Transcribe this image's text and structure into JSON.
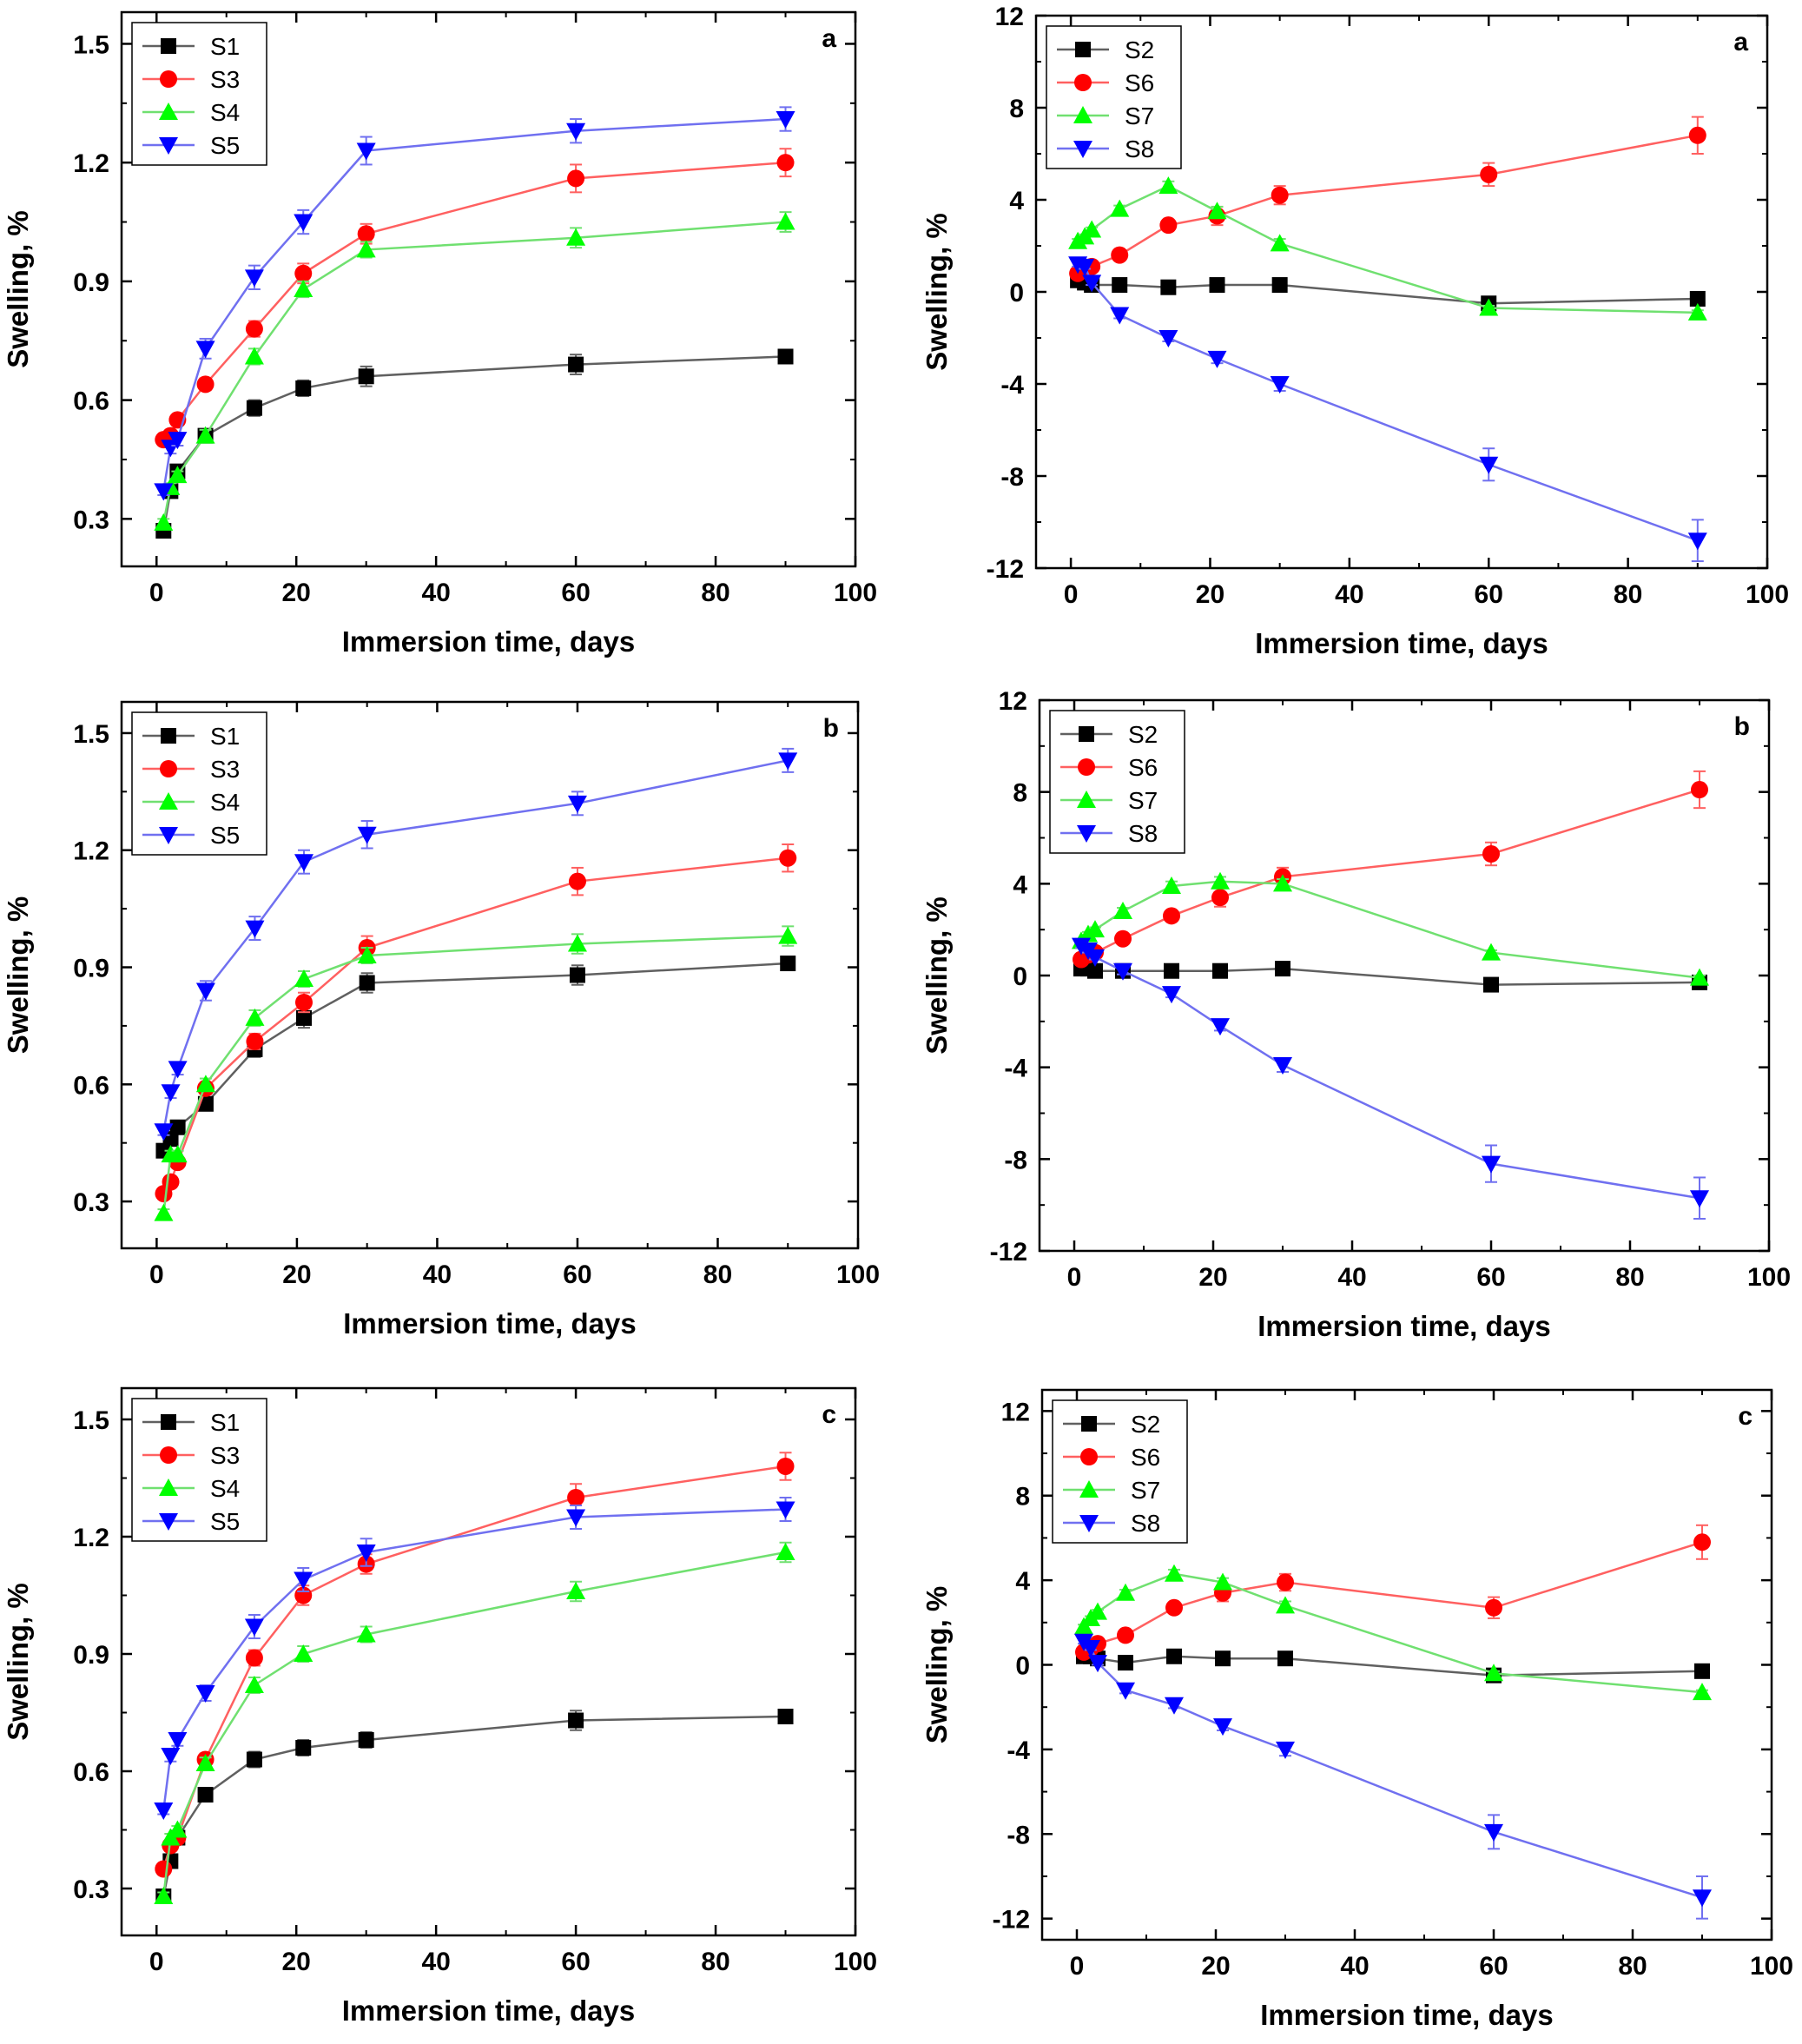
{
  "chart_data": [
    {
      "type": "line",
      "panel_label": "a",
      "xlabel": "Immersion time, days",
      "ylabel": "Swelling, %",
      "xlim": [
        -5,
        100
      ],
      "ylim": [
        0.18,
        1.58
      ],
      "xticks": [
        0,
        20,
        40,
        60,
        80,
        100
      ],
      "yticks": [
        0.3,
        0.6,
        0.9,
        1.2,
        1.5
      ],
      "ytick_labels": [
        "0.3",
        "0.6",
        "0.9",
        "1.2",
        "1.5"
      ],
      "legend_position": "top-left",
      "x": [
        1,
        2,
        3,
        7,
        14,
        21,
        30,
        60,
        90
      ],
      "series": [
        {
          "name": "S1",
          "color": "#000000",
          "line": "#606060",
          "marker": "square",
          "values": [
            0.27,
            0.37,
            0.42,
            0.51,
            0.58,
            0.63,
            0.66,
            0.69,
            0.71
          ],
          "errors": [
            0.01,
            0.01,
            0.01,
            0.01,
            0.02,
            0.02,
            0.025,
            0.025,
            0.01
          ]
        },
        {
          "name": "S3",
          "color": "#ff0000",
          "line": "#ff6060",
          "marker": "circle",
          "values": [
            0.5,
            0.51,
            0.55,
            0.64,
            0.78,
            0.92,
            1.02,
            1.16,
            1.2
          ],
          "errors": [
            0.01,
            0.01,
            0.01,
            0.015,
            0.02,
            0.025,
            0.025,
            0.035,
            0.035
          ]
        },
        {
          "name": "S4",
          "color": "#00ff00",
          "line": "#70e070",
          "marker": "triangle-up",
          "values": [
            0.29,
            0.38,
            0.41,
            0.51,
            0.71,
            0.88,
            0.98,
            1.01,
            1.05
          ],
          "errors": [
            0.01,
            0.01,
            0.01,
            0.015,
            0.02,
            0.02,
            0.02,
            0.025,
            0.025
          ]
        },
        {
          "name": "S5",
          "color": "#0000ff",
          "line": "#7070f0",
          "marker": "triangle-down",
          "values": [
            0.37,
            0.48,
            0.5,
            0.73,
            0.91,
            1.05,
            1.23,
            1.28,
            1.31
          ],
          "errors": [
            0.01,
            0.015,
            0.015,
            0.025,
            0.03,
            0.03,
            0.035,
            0.03,
            0.03
          ]
        }
      ]
    },
    {
      "type": "line",
      "panel_label": "a",
      "xlabel": "Immersion time, days",
      "ylabel": "Swelling, %",
      "xlim": [
        -5,
        100
      ],
      "ylim": [
        -12,
        12
      ],
      "xticks": [
        0,
        20,
        40,
        60,
        80,
        100
      ],
      "yticks": [
        -12,
        -8,
        -4,
        0,
        4,
        8,
        12
      ],
      "ytick_labels": [
        "-12",
        "-8",
        "-4",
        "0",
        "4",
        "8",
        "12"
      ],
      "legend_position": "top-left",
      "x": [
        1,
        2,
        3,
        7,
        14,
        21,
        30,
        60,
        90
      ],
      "series": [
        {
          "name": "S2",
          "color": "#000000",
          "line": "#606060",
          "marker": "square",
          "values": [
            0.5,
            0.4,
            0.3,
            0.3,
            0.2,
            0.3,
            0.3,
            -0.5,
            -0.3
          ],
          "errors": [
            0.1,
            0.1,
            0.1,
            0.1,
            0.1,
            0.1,
            0.1,
            0.15,
            0.1
          ]
        },
        {
          "name": "S6",
          "color": "#ff0000",
          "line": "#ff6060",
          "marker": "circle",
          "values": [
            0.8,
            1.0,
            1.1,
            1.6,
            2.9,
            3.3,
            4.2,
            5.1,
            6.8
          ],
          "errors": [
            0.1,
            0.1,
            0.1,
            0.15,
            0.2,
            0.4,
            0.4,
            0.5,
            0.8
          ]
        },
        {
          "name": "S7",
          "color": "#00ff00",
          "line": "#70e070",
          "marker": "triangle-up",
          "values": [
            2.2,
            2.4,
            2.7,
            3.6,
            4.6,
            3.5,
            2.1,
            -0.7,
            -0.9
          ],
          "errors": [
            0.1,
            0.1,
            0.1,
            0.15,
            0.2,
            0.2,
            0.2,
            0.1,
            0.1
          ]
        },
        {
          "name": "S8",
          "color": "#0000ff",
          "line": "#7070f0",
          "marker": "triangle-down",
          "values": [
            1.2,
            1.1,
            0.4,
            -1.0,
            -2.0,
            -2.9,
            -4.0,
            -7.5,
            -10.8
          ],
          "errors": [
            0.1,
            0.1,
            0.1,
            0.15,
            0.15,
            0.2,
            0.3,
            0.7,
            0.9
          ]
        }
      ]
    },
    {
      "type": "line",
      "panel_label": "b",
      "xlabel": "Immersion time, days",
      "ylabel": "Swelling, %",
      "xlim": [
        -5,
        100
      ],
      "ylim": [
        0.18,
        1.58
      ],
      "xticks": [
        0,
        20,
        40,
        60,
        80,
        100
      ],
      "yticks": [
        0.3,
        0.6,
        0.9,
        1.2,
        1.5
      ],
      "ytick_labels": [
        "0.3",
        "0.6",
        "0.9",
        "1.2",
        "1.5"
      ],
      "legend_position": "top-left",
      "x": [
        1,
        2,
        3,
        7,
        14,
        21,
        30,
        60,
        90
      ],
      "series": [
        {
          "name": "S1",
          "color": "#000000",
          "line": "#606060",
          "marker": "square",
          "values": [
            0.43,
            0.46,
            0.49,
            0.55,
            0.69,
            0.77,
            0.86,
            0.88,
            0.91
          ],
          "errors": [
            0.01,
            0.01,
            0.01,
            0.015,
            0.02,
            0.025,
            0.025,
            0.025,
            0.01
          ]
        },
        {
          "name": "S3",
          "color": "#ff0000",
          "line": "#ff6060",
          "marker": "circle",
          "values": [
            0.32,
            0.35,
            0.4,
            0.59,
            0.71,
            0.81,
            0.95,
            1.12,
            1.18
          ],
          "errors": [
            0.01,
            0.01,
            0.01,
            0.015,
            0.02,
            0.025,
            0.03,
            0.035,
            0.035
          ]
        },
        {
          "name": "S4",
          "color": "#00ff00",
          "line": "#70e070",
          "marker": "triangle-up",
          "values": [
            0.27,
            0.42,
            0.42,
            0.6,
            0.77,
            0.87,
            0.93,
            0.96,
            0.98
          ],
          "errors": [
            0.01,
            0.01,
            0.01,
            0.015,
            0.02,
            0.02,
            0.02,
            0.025,
            0.025
          ]
        },
        {
          "name": "S5",
          "color": "#0000ff",
          "line": "#7070f0",
          "marker": "triangle-down",
          "values": [
            0.48,
            0.58,
            0.64,
            0.84,
            1.0,
            1.17,
            1.24,
            1.32,
            1.43
          ],
          "errors": [
            0.01,
            0.015,
            0.015,
            0.025,
            0.03,
            0.03,
            0.035,
            0.03,
            0.03
          ]
        }
      ]
    },
    {
      "type": "line",
      "panel_label": "b",
      "xlabel": "Immersion time, days",
      "ylabel": "Swelling, %",
      "xlim": [
        -5,
        100
      ],
      "ylim": [
        -12,
        12
      ],
      "xticks": [
        0,
        20,
        40,
        60,
        80,
        100
      ],
      "yticks": [
        -12,
        -8,
        -4,
        0,
        4,
        8,
        12
      ],
      "ytick_labels": [
        "-12",
        "-8",
        "-4",
        "0",
        "4",
        "8",
        "12"
      ],
      "legend_position": "top-left",
      "x": [
        1,
        2,
        3,
        7,
        14,
        21,
        30,
        60,
        90
      ],
      "series": [
        {
          "name": "S2",
          "color": "#000000",
          "line": "#606060",
          "marker": "square",
          "values": [
            0.3,
            0.3,
            0.2,
            0.2,
            0.2,
            0.2,
            0.3,
            -0.4,
            -0.3
          ],
          "errors": [
            0.1,
            0.1,
            0.1,
            0.1,
            0.1,
            0.1,
            0.1,
            0.1,
            0.1
          ]
        },
        {
          "name": "S6",
          "color": "#ff0000",
          "line": "#ff6060",
          "marker": "circle",
          "values": [
            0.7,
            0.9,
            1.0,
            1.6,
            2.6,
            3.4,
            4.3,
            5.3,
            8.1
          ],
          "errors": [
            0.1,
            0.1,
            0.1,
            0.15,
            0.2,
            0.4,
            0.4,
            0.5,
            0.8
          ]
        },
        {
          "name": "S7",
          "color": "#00ff00",
          "line": "#70e070",
          "marker": "triangle-up",
          "values": [
            1.5,
            1.8,
            2.0,
            2.8,
            3.9,
            4.1,
            4.0,
            1.0,
            -0.1
          ],
          "errors": [
            0.1,
            0.1,
            0.1,
            0.15,
            0.2,
            0.2,
            0.2,
            0.1,
            0.1
          ]
        },
        {
          "name": "S8",
          "color": "#0000ff",
          "line": "#7070f0",
          "marker": "triangle-down",
          "values": [
            1.3,
            1.1,
            0.8,
            0.2,
            -0.8,
            -2.2,
            -3.9,
            -8.2,
            -9.7
          ],
          "errors": [
            0.1,
            0.1,
            0.1,
            0.15,
            0.15,
            0.2,
            0.3,
            0.8,
            0.9
          ]
        }
      ]
    },
    {
      "type": "line",
      "panel_label": "c",
      "xlabel": "Immersion time, days",
      "ylabel": "Swelling, %",
      "xlim": [
        -5,
        100
      ],
      "ylim": [
        0.18,
        1.58
      ],
      "xticks": [
        0,
        20,
        40,
        60,
        80,
        100
      ],
      "yticks": [
        0.3,
        0.6,
        0.9,
        1.2,
        1.5
      ],
      "ytick_labels": [
        "0.3",
        "0.6",
        "0.9",
        "1.2",
        "1.5"
      ],
      "legend_position": "top-left",
      "x": [
        1,
        2,
        3,
        7,
        14,
        21,
        30,
        60,
        90
      ],
      "series": [
        {
          "name": "S1",
          "color": "#000000",
          "line": "#606060",
          "marker": "square",
          "values": [
            0.28,
            0.37,
            0.43,
            0.54,
            0.63,
            0.66,
            0.68,
            0.73,
            0.74
          ],
          "errors": [
            0.01,
            0.01,
            0.01,
            0.01,
            0.02,
            0.02,
            0.02,
            0.025,
            0.01
          ]
        },
        {
          "name": "S3",
          "color": "#ff0000",
          "line": "#ff6060",
          "marker": "circle",
          "values": [
            0.35,
            0.41,
            0.43,
            0.63,
            0.89,
            1.05,
            1.13,
            1.3,
            1.38
          ],
          "errors": [
            0.01,
            0.01,
            0.01,
            0.015,
            0.02,
            0.025,
            0.025,
            0.035,
            0.035
          ]
        },
        {
          "name": "S4",
          "color": "#00ff00",
          "line": "#70e070",
          "marker": "triangle-up",
          "values": [
            0.28,
            0.43,
            0.45,
            0.62,
            0.82,
            0.9,
            0.95,
            1.06,
            1.16
          ],
          "errors": [
            0.01,
            0.01,
            0.01,
            0.015,
            0.02,
            0.02,
            0.02,
            0.025,
            0.025
          ]
        },
        {
          "name": "S5",
          "color": "#0000ff",
          "line": "#7070f0",
          "marker": "triangle-down",
          "values": [
            0.5,
            0.64,
            0.68,
            0.8,
            0.97,
            1.09,
            1.16,
            1.25,
            1.27
          ],
          "errors": [
            0.01,
            0.015,
            0.015,
            0.02,
            0.03,
            0.03,
            0.035,
            0.03,
            0.03
          ]
        }
      ]
    },
    {
      "type": "line",
      "panel_label": "c",
      "xlabel": "Immersion time, days",
      "ylabel": "Swelling, %",
      "xlim": [
        -5,
        100
      ],
      "ylim": [
        -13,
        13
      ],
      "xticks": [
        0,
        20,
        40,
        60,
        80,
        100
      ],
      "yticks": [
        -12,
        -8,
        -4,
        0,
        4,
        8,
        12
      ],
      "ytick_labels": [
        "-12",
        "-8",
        "-4",
        "0",
        "4",
        "8",
        "12"
      ],
      "legend_position": "top-left",
      "x": [
        1,
        2,
        3,
        7,
        14,
        21,
        30,
        60,
        90
      ],
      "series": [
        {
          "name": "S2",
          "color": "#000000",
          "line": "#606060",
          "marker": "square",
          "values": [
            0.4,
            0.4,
            0.3,
            0.1,
            0.4,
            0.3,
            0.3,
            -0.5,
            -0.3
          ],
          "errors": [
            0.1,
            0.1,
            0.1,
            0.1,
            0.1,
            0.1,
            0.1,
            0.1,
            0.1
          ]
        },
        {
          "name": "S6",
          "color": "#ff0000",
          "line": "#ff6060",
          "marker": "circle",
          "values": [
            0.6,
            0.8,
            1.0,
            1.4,
            2.7,
            3.4,
            3.9,
            2.7,
            5.8
          ],
          "errors": [
            0.1,
            0.1,
            0.1,
            0.15,
            0.2,
            0.4,
            0.4,
            0.5,
            0.8
          ]
        },
        {
          "name": "S7",
          "color": "#00ff00",
          "line": "#70e070",
          "marker": "triangle-up",
          "values": [
            1.8,
            2.2,
            2.5,
            3.4,
            4.3,
            3.9,
            2.8,
            -0.4,
            -1.3
          ],
          "errors": [
            0.1,
            0.1,
            0.1,
            0.15,
            0.2,
            0.2,
            0.2,
            0.1,
            0.1
          ]
        },
        {
          "name": "S8",
          "color": "#0000ff",
          "line": "#7070f0",
          "marker": "triangle-down",
          "values": [
            1.1,
            0.8,
            0.1,
            -1.2,
            -1.9,
            -2.9,
            -4.0,
            -7.9,
            -11.0
          ],
          "errors": [
            0.1,
            0.1,
            0.1,
            0.15,
            0.15,
            0.2,
            0.3,
            0.8,
            1.0
          ]
        }
      ]
    }
  ]
}
